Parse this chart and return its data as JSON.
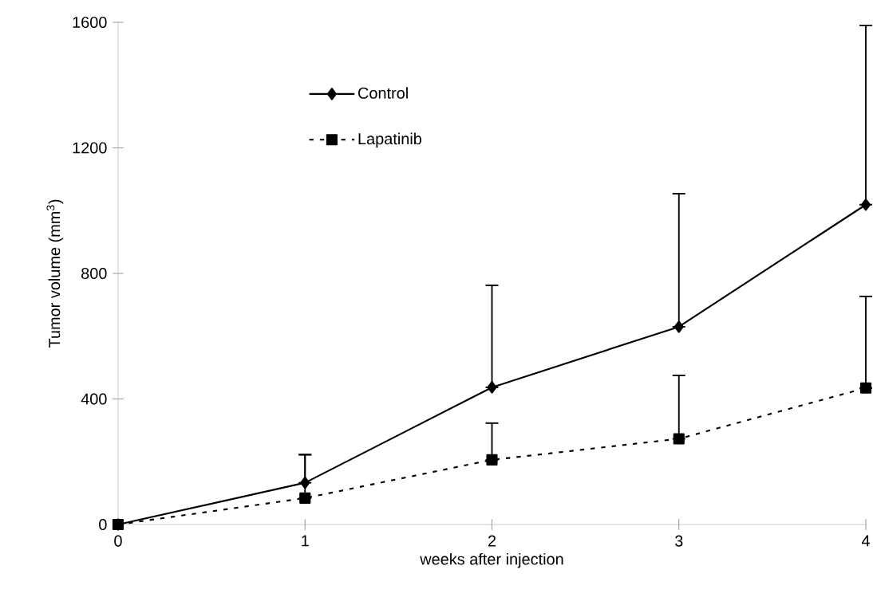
{
  "chart_data": {
    "type": "line",
    "xlabel": "weeks after injection",
    "ylabel": "Tumor volume (mm$^{3}$)",
    "x": [
      0,
      1,
      2,
      3,
      4
    ],
    "series": [
      {
        "name": "Control",
        "color": "#000000",
        "marker": "diamond",
        "line_style": "solid",
        "values": [
          0,
          133,
          437,
          630,
          1019
        ],
        "errors": [
          null,
          [
            133,
            222
          ],
          [
            437,
            762
          ],
          [
            630,
            1054
          ],
          [
            1019,
            1590
          ]
        ]
      },
      {
        "name": "Lapatinib",
        "color": "#000000",
        "marker": "square",
        "line_style": "dotted",
        "values": [
          0,
          84,
          206,
          273,
          435
        ],
        "errors": [
          null,
          [
            84,
            223
          ],
          [
            206,
            323
          ],
          [
            273,
            475
          ],
          [
            435,
            727
          ]
        ]
      }
    ],
    "xlim": [
      0,
      4
    ],
    "xticks": [
      0,
      1,
      2,
      3,
      4
    ],
    "ylim": [
      0,
      1600
    ],
    "yticks": [
      0,
      400,
      800,
      1200,
      1600
    ],
    "grid": false,
    "legend": "top left"
  }
}
